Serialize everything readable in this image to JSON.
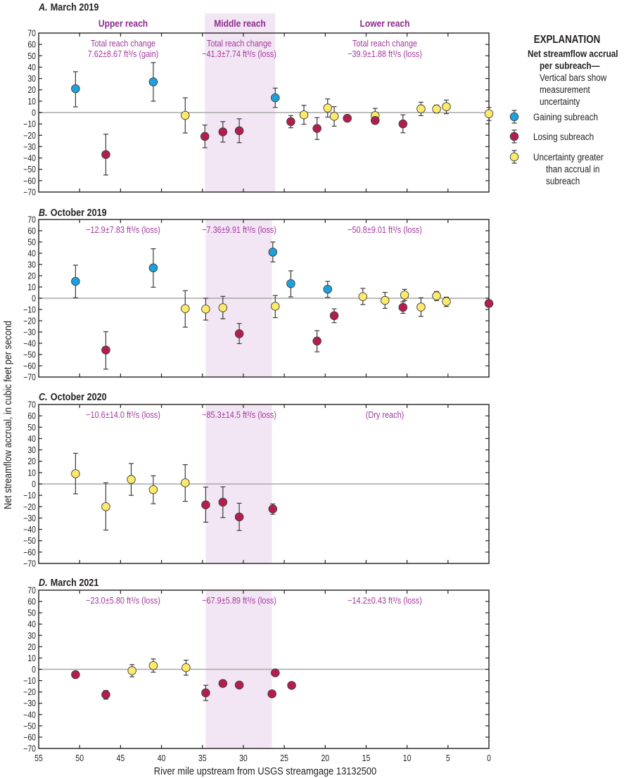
{
  "figure": {
    "xlabel": "River mile upstream from USGS streamgage 13132500",
    "ylabel": "Net streamflow accrual, in cubic feet per second",
    "legend": {
      "heading": "EXPLANATION",
      "subheading_lines": [
        "Net streamflow accrual",
        "per subreach—"
      ],
      "description_lines": [
        "Vertical bars show",
        "measurement",
        "uncertainty"
      ],
      "items": [
        {
          "category": "gaining",
          "lines": [
            "Gaining subreach"
          ],
          "color": "#1ea0dc"
        },
        {
          "category": "losing",
          "lines": [
            "Losing subreach"
          ],
          "color": "#b41e4e"
        },
        {
          "category": "uncertain",
          "lines": [
            "Uncertainty greater",
            "than accrual in",
            "subreach"
          ],
          "color": "#fdea6b"
        }
      ]
    },
    "colors": {
      "gaining": "#1ea0dc",
      "losing": "#b41e4e",
      "uncertain": "#fdea6b",
      "middle_reach_shade": "#f3e6f4",
      "annotation": "#a2399e",
      "reach_header": "#8b2a8b",
      "zero_line": "#a8a8a8"
    }
  },
  "chart_data": [
    {
      "type": "scatter",
      "panel_label": "A.",
      "title": "March 2019",
      "xlabel": "River mile upstream from USGS streamgage 13132500",
      "ylabel": "Net streamflow accrual, in cubic feet per second",
      "xlim": [
        55,
        0
      ],
      "ylim": [
        -70,
        70
      ],
      "x_ticks": [
        55,
        50,
        45,
        40,
        35,
        30,
        25,
        20,
        15,
        10,
        5,
        0
      ],
      "y_ticks": [
        70,
        60,
        50,
        40,
        30,
        20,
        10,
        0,
        -10,
        -20,
        -30,
        -40,
        -50,
        -60,
        -70
      ],
      "y_tick_labels": [
        "70",
        "60",
        "50",
        "40",
        "30",
        "20",
        "10",
        "0",
        "−10",
        "−20",
        "−30",
        "−40",
        "−50",
        "−60",
        "−70"
      ],
      "reference_line_y": 0,
      "middle_reach_miles": [
        34.7,
        26.1
      ],
      "reach_headers": [
        {
          "reach": "upper",
          "label": "Upper reach"
        },
        {
          "reach": "middle",
          "label": "Middle reach"
        },
        {
          "reach": "lower",
          "label": "Lower reach"
        }
      ],
      "reach_annotations": [
        {
          "reach": "upper",
          "lines": [
            "Total reach change",
            "7.62±8.67 ft³/s (gain)"
          ]
        },
        {
          "reach": "middle",
          "lines": [
            "Total reach change",
            "−41.3±7.74 ft³/s (loss)"
          ]
        },
        {
          "reach": "lower",
          "lines": [
            "Total reach change",
            "−39.9±1.88 ft³/s (loss)"
          ]
        }
      ],
      "points": [
        {
          "river_mile": 50.5,
          "value": 21,
          "err_low": 5,
          "err_high": 36,
          "category": "gaining"
        },
        {
          "river_mile": 46.8,
          "value": -37,
          "err_low": -55,
          "err_high": -19,
          "category": "losing"
        },
        {
          "river_mile": 41.0,
          "value": 27,
          "err_low": 10,
          "err_high": 44,
          "category": "gaining"
        },
        {
          "river_mile": 37.1,
          "value": -2.5,
          "err_low": -18,
          "err_high": 13,
          "category": "uncertain"
        },
        {
          "river_mile": 34.7,
          "value": -21,
          "err_low": -31,
          "err_high": -11,
          "category": "losing"
        },
        {
          "river_mile": 32.5,
          "value": -17,
          "err_low": -26,
          "err_high": -8,
          "category": "losing"
        },
        {
          "river_mile": 30.5,
          "value": -16,
          "err_low": -26.5,
          "err_high": -5.5,
          "category": "losing"
        },
        {
          "river_mile": 26.1,
          "value": 13,
          "err_low": 4.5,
          "err_high": 21.5,
          "category": "gaining"
        },
        {
          "river_mile": 24.2,
          "value": -8,
          "err_low": -13.4,
          "err_high": -2.7,
          "category": "losing"
        },
        {
          "river_mile": 22.6,
          "value": -2,
          "err_low": -10.3,
          "err_high": 6.4,
          "category": "uncertain"
        },
        {
          "river_mile": 21.0,
          "value": -14,
          "err_low": -23.7,
          "err_high": -4.5,
          "category": "losing"
        },
        {
          "river_mile": 19.7,
          "value": 4,
          "err_low": -4,
          "err_high": 12,
          "category": "uncertain"
        },
        {
          "river_mile": 18.9,
          "value": -3.3,
          "err_low": -12,
          "err_high": 5.2,
          "category": "uncertain"
        },
        {
          "river_mile": 17.3,
          "value": -5,
          "err_low": -6,
          "err_high": -4,
          "category": "losing"
        },
        {
          "river_mile": 13.9,
          "value": -2.7,
          "err_low": -9,
          "err_high": 3.7,
          "category": "uncertain"
        },
        {
          "river_mile": 13.9,
          "value": -7,
          "err_low": -10,
          "err_high": -4,
          "category": "losing"
        },
        {
          "river_mile": 10.5,
          "value": -10,
          "err_low": -17.8,
          "err_high": -2,
          "category": "losing"
        },
        {
          "river_mile": 8.3,
          "value": 3.3,
          "err_low": -2.7,
          "err_high": 9.1,
          "category": "uncertain"
        },
        {
          "river_mile": 6.4,
          "value": 3.1,
          "err_low": -0.4,
          "err_high": 6.6,
          "category": "uncertain"
        },
        {
          "river_mile": 5.2,
          "value": 5.2,
          "err_low": -1,
          "err_high": 11,
          "category": "uncertain"
        },
        {
          "river_mile": 0.0,
          "value": -1,
          "err_low": -7,
          "err_high": 4.5,
          "category": "uncertain"
        }
      ]
    },
    {
      "type": "scatter",
      "panel_label": "B.",
      "title": "October 2019",
      "xlim": [
        55,
        0
      ],
      "ylim": [
        -70,
        70
      ],
      "x_ticks": [
        55,
        50,
        45,
        40,
        35,
        30,
        25,
        20,
        15,
        10,
        5,
        0
      ],
      "y_ticks": [
        70,
        60,
        50,
        40,
        30,
        20,
        10,
        0,
        -10,
        -20,
        -30,
        -40,
        -50,
        -60,
        -70
      ],
      "y_tick_labels": [
        "70",
        "60",
        "50",
        "40",
        "30",
        "20",
        "10",
        "0",
        "−10",
        "−20",
        "−30",
        "−40",
        "−50",
        "−60",
        "−70"
      ],
      "reference_line_y": 0,
      "middle_reach_miles": [
        34.6,
        26.5
      ],
      "reach_annotations": [
        {
          "reach": "upper",
          "lines": [
            "−12.9±7.83 ft³/s (loss)"
          ]
        },
        {
          "reach": "middle",
          "lines": [
            "−7.36±9.91 ft³/s (loss)"
          ]
        },
        {
          "reach": "lower",
          "lines": [
            "−50.8±9.01 ft³/s (loss)"
          ]
        }
      ],
      "points": [
        {
          "river_mile": 50.5,
          "value": 15,
          "err_low": 0.4,
          "err_high": 29.4,
          "category": "gaining"
        },
        {
          "river_mile": 46.8,
          "value": -46,
          "err_low": -63,
          "err_high": -29.7,
          "category": "losing"
        },
        {
          "river_mile": 41.0,
          "value": 27,
          "err_low": 9.8,
          "err_high": 44,
          "category": "gaining"
        },
        {
          "river_mile": 37.1,
          "value": -9.2,
          "err_low": -25.7,
          "err_high": 6.7,
          "category": "uncertain"
        },
        {
          "river_mile": 34.6,
          "value": -9.6,
          "err_low": -19.4,
          "err_high": 0,
          "category": "uncertain"
        },
        {
          "river_mile": 32.5,
          "value": -8.4,
          "err_low": -18.2,
          "err_high": 1.7,
          "category": "uncertain"
        },
        {
          "river_mile": 30.5,
          "value": -31.5,
          "err_low": -40.3,
          "err_high": -22.4,
          "category": "losing"
        },
        {
          "river_mile": 26.4,
          "value": 41,
          "err_low": 32.3,
          "err_high": 50,
          "category": "gaining"
        },
        {
          "river_mile": 26.1,
          "value": -7.1,
          "err_low": -17.2,
          "err_high": 2.5,
          "category": "uncertain"
        },
        {
          "river_mile": 24.2,
          "value": 13,
          "err_low": 1.2,
          "err_high": 24.4,
          "category": "gaining"
        },
        {
          "river_mile": 21.0,
          "value": -38,
          "err_low": -47.6,
          "err_high": -28.8,
          "category": "losing"
        },
        {
          "river_mile": 19.7,
          "value": 8,
          "err_low": 0.8,
          "err_high": 15,
          "category": "gaining"
        },
        {
          "river_mile": 18.9,
          "value": -15.5,
          "err_low": -21.7,
          "err_high": -9.4,
          "category": "losing"
        },
        {
          "river_mile": 15.4,
          "value": 1.4,
          "err_low": -5.6,
          "err_high": 8.8,
          "category": "uncertain"
        },
        {
          "river_mile": 12.7,
          "value": -1.9,
          "err_low": -9,
          "err_high": 5.2,
          "category": "uncertain"
        },
        {
          "river_mile": 10.5,
          "value": -8.1,
          "err_low": -13.4,
          "err_high": -3.1,
          "category": "losing"
        },
        {
          "river_mile": 10.3,
          "value": 2.9,
          "err_low": -2.1,
          "err_high": 7.9,
          "category": "uncertain"
        },
        {
          "river_mile": 8.3,
          "value": -7.8,
          "err_low": -16.1,
          "err_high": 0.4,
          "category": "uncertain"
        },
        {
          "river_mile": 6.4,
          "value": 2.1,
          "err_low": -2.1,
          "err_high": 6,
          "category": "uncertain"
        },
        {
          "river_mile": 5.2,
          "value": -2.9,
          "err_low": -7.3,
          "err_high": 1,
          "category": "uncertain"
        },
        {
          "river_mile": 0.0,
          "value": -4.6,
          "err_low": -7.8,
          "err_high": -1.7,
          "category": "losing"
        }
      ]
    },
    {
      "type": "scatter",
      "panel_label": "C.",
      "title": "October 2020",
      "xlim": [
        55,
        0
      ],
      "ylim": [
        -70,
        70
      ],
      "x_ticks": [
        55,
        50,
        45,
        40,
        35,
        30,
        25,
        20,
        15,
        10,
        5,
        0
      ],
      "y_ticks": [
        70,
        60,
        50,
        40,
        30,
        20,
        10,
        0,
        -10,
        -20,
        -30,
        -40,
        -50,
        -60,
        -70
      ],
      "y_tick_labels": [
        "70",
        "60",
        "50",
        "40",
        "30",
        "20",
        "10",
        "0",
        "−10",
        "−20",
        "−30",
        "−40",
        "−50",
        "−60",
        "−70"
      ],
      "reference_line_y": 0,
      "middle_reach_miles": [
        34.6,
        26.5
      ],
      "reach_annotations": [
        {
          "reach": "upper",
          "lines": [
            "−10.6±14.0 ft³/s (loss)"
          ]
        },
        {
          "reach": "middle",
          "lines": [
            "−85.3±14.5 ft³/s (loss)"
          ]
        },
        {
          "reach": "lower",
          "lines": [
            "(Dry reach)"
          ]
        }
      ],
      "points": [
        {
          "river_mile": 50.5,
          "value": 9,
          "err_low": -8.7,
          "err_high": 27,
          "category": "uncertain"
        },
        {
          "river_mile": 46.8,
          "value": -20,
          "err_low": -40.6,
          "err_high": 1,
          "category": "uncertain"
        },
        {
          "river_mile": 43.7,
          "value": 4,
          "err_low": -10,
          "err_high": 18,
          "category": "uncertain"
        },
        {
          "river_mile": 41.0,
          "value": -5,
          "err_low": -17.4,
          "err_high": 7.2,
          "category": "uncertain"
        },
        {
          "river_mile": 37.1,
          "value": 1,
          "err_low": -15.3,
          "err_high": 17,
          "category": "uncertain"
        },
        {
          "river_mile": 34.6,
          "value": -18.4,
          "err_low": -33.7,
          "err_high": -2.7,
          "category": "losing"
        },
        {
          "river_mile": 32.5,
          "value": -16,
          "err_low": -29.6,
          "err_high": -2.5,
          "category": "losing"
        },
        {
          "river_mile": 30.5,
          "value": -29,
          "err_low": -41,
          "err_high": -17,
          "category": "losing"
        },
        {
          "river_mile": 26.4,
          "value": -22,
          "err_low": -26.7,
          "err_high": -17.6,
          "category": "losing"
        }
      ]
    },
    {
      "type": "scatter",
      "panel_label": "D.",
      "title": "March 2021",
      "xlim": [
        55,
        0
      ],
      "ylim": [
        -70,
        70
      ],
      "x_ticks": [
        55,
        50,
        45,
        40,
        35,
        30,
        25,
        20,
        15,
        10,
        5,
        0
      ],
      "x_tick_labels": [
        "55",
        "50",
        "45",
        "40",
        "35",
        "30",
        "25",
        "20",
        "15",
        "10",
        "5",
        "0"
      ],
      "y_ticks": [
        70,
        60,
        50,
        40,
        30,
        20,
        10,
        0,
        -10,
        -20,
        -30,
        -40,
        -50,
        -60,
        -70
      ],
      "y_tick_labels": [
        "70",
        "60",
        "50",
        "40",
        "30",
        "20",
        "10",
        "0",
        "−10",
        "−20",
        "−30",
        "−40",
        "−50",
        "−60",
        "−70"
      ],
      "reference_line_y": 0,
      "middle_reach_miles": [
        34.6,
        26.5
      ],
      "reach_annotations": [
        {
          "reach": "upper",
          "lines": [
            "−23.0±5.80 ft³/s (loss)"
          ]
        },
        {
          "reach": "middle",
          "lines": [
            "−67.9±5.89 ft³/s (loss)"
          ]
        },
        {
          "reach": "lower",
          "lines": [
            "−14.2±0.43 ft³/s (loss)"
          ]
        }
      ],
      "points": [
        {
          "river_mile": 50.5,
          "value": -4.7,
          "err_low": -6.7,
          "err_high": -2.7,
          "category": "losing"
        },
        {
          "river_mile": 46.8,
          "value": -22.4,
          "err_low": -26.4,
          "err_high": -18.7,
          "category": "losing"
        },
        {
          "river_mile": 43.6,
          "value": -1.2,
          "err_low": -6.6,
          "err_high": 4.2,
          "category": "uncertain"
        },
        {
          "river_mile": 41.0,
          "value": 3.3,
          "err_low": -2.5,
          "err_high": 9.2,
          "category": "uncertain"
        },
        {
          "river_mile": 37.0,
          "value": 1.5,
          "err_low": -5.2,
          "err_high": 8.1,
          "category": "uncertain"
        },
        {
          "river_mile": 34.6,
          "value": -20.8,
          "err_low": -27.6,
          "err_high": -14.1,
          "category": "losing"
        },
        {
          "river_mile": 32.5,
          "value": -12.5,
          "err_low": -15.4,
          "err_high": -10,
          "category": "losing"
        },
        {
          "river_mile": 30.5,
          "value": -13.9,
          "err_low": -15.5,
          "err_high": -12.5,
          "category": "losing"
        },
        {
          "river_mile": 26.5,
          "value": -21.7,
          "err_low": -23,
          "err_high": -20.5,
          "category": "losing"
        },
        {
          "river_mile": 26.1,
          "value": -3.1,
          "err_low": -4.5,
          "err_high": -2,
          "category": "losing"
        },
        {
          "river_mile": 24.1,
          "value": -14.2,
          "err_low": -15.5,
          "err_high": -13,
          "category": "losing"
        }
      ]
    }
  ]
}
